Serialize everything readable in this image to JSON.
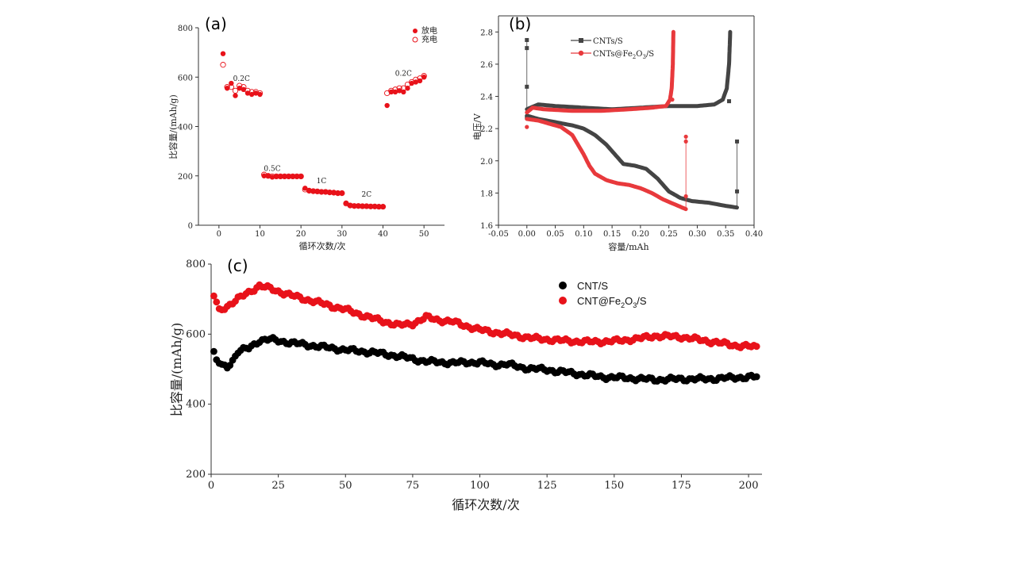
{
  "chart_data": [
    {
      "panel": "(a)",
      "type": "scatter",
      "xlabel": "循环次数/次",
      "ylabel": "比容量/(mAh/g)",
      "xlim": [
        -5,
        55
      ],
      "ylim": [
        0,
        800
      ],
      "xticks": [
        0,
        10,
        20,
        30,
        40,
        50
      ],
      "yticks": [
        0,
        200,
        400,
        600,
        800
      ],
      "legend": [
        "放电",
        "充电"
      ],
      "legend_position": "top-right",
      "annotations": [
        {
          "text": "0.2C",
          "x": 5.5,
          "y": 585
        },
        {
          "text": "0.5C",
          "x": 13,
          "y": 220
        },
        {
          "text": "1C",
          "x": 25,
          "y": 170
        },
        {
          "text": "2C",
          "x": 36,
          "y": 115
        },
        {
          "text": "0.2C",
          "x": 45,
          "y": 605
        }
      ],
      "series": [
        {
          "name": "放电",
          "marker": "filled",
          "x": [
            1,
            2,
            3,
            4,
            5,
            6,
            7,
            8,
            9,
            10,
            11,
            12,
            13,
            14,
            15,
            16,
            17,
            18,
            19,
            20,
            21,
            22,
            23,
            24,
            25,
            26,
            27,
            28,
            29,
            30,
            31,
            32,
            33,
            34,
            35,
            36,
            37,
            38,
            39,
            40,
            41,
            42,
            43,
            44,
            45,
            46,
            47,
            48,
            49,
            50
          ],
          "y": [
            695,
            555,
            575,
            525,
            555,
            550,
            535,
            530,
            535,
            530,
            200,
            200,
            195,
            197,
            197,
            197,
            197,
            197,
            197,
            197,
            150,
            140,
            138,
            137,
            135,
            135,
            133,
            132,
            130,
            130,
            90,
            80,
            78,
            78,
            77,
            77,
            76,
            76,
            75,
            75,
            485,
            540,
            540,
            545,
            540,
            555,
            575,
            580,
            585,
            600
          ]
        },
        {
          "name": "充电",
          "marker": "hollow",
          "x": [
            1,
            2,
            3,
            4,
            5,
            6,
            7,
            8,
            9,
            10,
            11,
            12,
            13,
            14,
            15,
            16,
            17,
            18,
            19,
            20,
            21,
            22,
            23,
            24,
            25,
            26,
            27,
            28,
            29,
            30,
            31,
            32,
            33,
            34,
            35,
            36,
            37,
            38,
            39,
            40,
            41,
            42,
            43,
            44,
            45,
            46,
            47,
            48,
            49,
            50
          ],
          "y": [
            650,
            560,
            560,
            545,
            565,
            560,
            545,
            540,
            540,
            535,
            205,
            200,
            198,
            198,
            198,
            198,
            198,
            198,
            198,
            198,
            145,
            140,
            138,
            137,
            135,
            135,
            133,
            132,
            130,
            130,
            88,
            80,
            78,
            78,
            77,
            77,
            76,
            76,
            75,
            75,
            535,
            545,
            550,
            555,
            555,
            570,
            580,
            590,
            595,
            605
          ]
        }
      ]
    },
    {
      "panel": "(b)",
      "type": "line",
      "xlabel": "容量/mAh",
      "ylabel": "电压/V",
      "xlim": [
        -0.05,
        0.4
      ],
      "ylim": [
        1.6,
        2.9
      ],
      "xticks": [
        "-0.05",
        "0.00",
        "0.05",
        "0.10",
        "0.15",
        "0.20",
        "0.25",
        "0.30",
        "0.35",
        "0.40"
      ],
      "yticks": [
        "1.6",
        "1.8",
        "2.0",
        "2.2",
        "2.4",
        "2.6",
        "2.8"
      ],
      "legend_position": "top-left",
      "series": [
        {
          "name": "CNTs/S",
          "color": "#444444",
          "marker": "square",
          "discharge": [
            [
              0,
              2.28
            ],
            [
              0.02,
              2.26
            ],
            [
              0.05,
              2.24
            ],
            [
              0.08,
              2.22
            ],
            [
              0.1,
              2.2
            ],
            [
              0.12,
              2.16
            ],
            [
              0.14,
              2.1
            ],
            [
              0.16,
              2.02
            ],
            [
              0.17,
              1.98
            ],
            [
              0.19,
              1.97
            ],
            [
              0.21,
              1.95
            ],
            [
              0.23,
              1.89
            ],
            [
              0.25,
              1.81
            ],
            [
              0.27,
              1.77
            ],
            [
              0.29,
              1.75
            ],
            [
              0.32,
              1.74
            ],
            [
              0.35,
              1.72
            ],
            [
              0.37,
              1.71
            ]
          ],
          "charge": [
            [
              0,
              2.32
            ],
            [
              0.02,
              2.35
            ],
            [
              0.05,
              2.34
            ],
            [
              0.1,
              2.33
            ],
            [
              0.15,
              2.32
            ],
            [
              0.2,
              2.33
            ],
            [
              0.25,
              2.34
            ],
            [
              0.3,
              2.34
            ],
            [
              0.33,
              2.35
            ],
            [
              0.345,
              2.38
            ],
            [
              0.352,
              2.45
            ],
            [
              0.356,
              2.6
            ],
            [
              0.358,
              2.8
            ]
          ]
        },
        {
          "name": "CNTs@Fe2O3/S",
          "name_base": "CNTs@Fe",
          "name_sub1": "2",
          "name_mid": "O",
          "name_sub2": "3",
          "name_tail": "/S",
          "color": "#e8393c",
          "marker": "circle",
          "discharge": [
            [
              0,
              2.26
            ],
            [
              0.02,
              2.25
            ],
            [
              0.04,
              2.23
            ],
            [
              0.06,
              2.21
            ],
            [
              0.08,
              2.16
            ],
            [
              0.09,
              2.1
            ],
            [
              0.1,
              2.04
            ],
            [
              0.11,
              1.97
            ],
            [
              0.12,
              1.92
            ],
            [
              0.14,
              1.88
            ],
            [
              0.16,
              1.86
            ],
            [
              0.18,
              1.85
            ],
            [
              0.2,
              1.83
            ],
            [
              0.22,
              1.8
            ],
            [
              0.24,
              1.76
            ],
            [
              0.26,
              1.73
            ],
            [
              0.28,
              1.7
            ]
          ],
          "charge": [
            [
              0,
              2.3
            ],
            [
              0.01,
              2.33
            ],
            [
              0.03,
              2.32
            ],
            [
              0.08,
              2.31
            ],
            [
              0.13,
              2.31
            ],
            [
              0.18,
              2.32
            ],
            [
              0.22,
              2.33
            ],
            [
              0.245,
              2.34
            ],
            [
              0.252,
              2.38
            ],
            [
              0.255,
              2.45
            ],
            [
              0.257,
              2.6
            ],
            [
              0.258,
              2.8
            ]
          ]
        }
      ]
    },
    {
      "panel": "(c)",
      "type": "scatter",
      "xlabel": "循环次数/次",
      "ylabel": "比容量/(mAh/g)",
      "xlim": [
        0,
        205
      ],
      "ylim": [
        200,
        800
      ],
      "xticks": [
        0,
        25,
        50,
        75,
        100,
        125,
        150,
        175,
        200
      ],
      "yticks": [
        200,
        400,
        600,
        800
      ],
      "legend_position": "top-right",
      "series": [
        {
          "name": "CNT/S",
          "color": "#000000",
          "anchors": [
            [
              1,
              545
            ],
            [
              2,
              525
            ],
            [
              4,
              510
            ],
            [
              6,
              508
            ],
            [
              8,
              525
            ],
            [
              10,
              550
            ],
            [
              14,
              560
            ],
            [
              18,
              582
            ],
            [
              22,
              585
            ],
            [
              30,
              575
            ],
            [
              40,
              565
            ],
            [
              50,
              555
            ],
            [
              60,
              548
            ],
            [
              70,
              537
            ],
            [
              80,
              522
            ],
            [
              90,
              518
            ],
            [
              100,
              520
            ],
            [
              105,
              512
            ],
            [
              110,
              515
            ],
            [
              115,
              505
            ],
            [
              125,
              498
            ],
            [
              135,
              488
            ],
            [
              145,
              478
            ],
            [
              155,
              475
            ],
            [
              165,
              470
            ],
            [
              175,
              472
            ],
            [
              185,
              472
            ],
            [
              195,
              476
            ],
            [
              203,
              478
            ]
          ]
        },
        {
          "name": "CNT@Fe2O3/S",
          "name_base": "CNT@Fe",
          "name_sub1": "2",
          "name_mid": "O",
          "name_sub2": "3",
          "name_tail": "/S",
          "color": "#e8121a",
          "anchors": [
            [
              1,
              710
            ],
            [
              3,
              668
            ],
            [
              6,
              680
            ],
            [
              10,
              700
            ],
            [
              14,
              720
            ],
            [
              18,
              738
            ],
            [
              22,
              730
            ],
            [
              30,
              710
            ],
            [
              40,
              690
            ],
            [
              50,
              670
            ],
            [
              60,
              645
            ],
            [
              70,
              625
            ],
            [
              75,
              630
            ],
            [
              80,
              648
            ],
            [
              85,
              640
            ],
            [
              90,
              635
            ],
            [
              100,
              612
            ],
            [
              110,
              600
            ],
            [
              120,
              588
            ],
            [
              130,
              582
            ],
            [
              140,
              578
            ],
            [
              150,
              580
            ],
            [
              160,
              588
            ],
            [
              165,
              595
            ],
            [
              175,
              592
            ],
            [
              185,
              580
            ],
            [
              195,
              568
            ],
            [
              203,
              563
            ]
          ]
        }
      ]
    }
  ]
}
